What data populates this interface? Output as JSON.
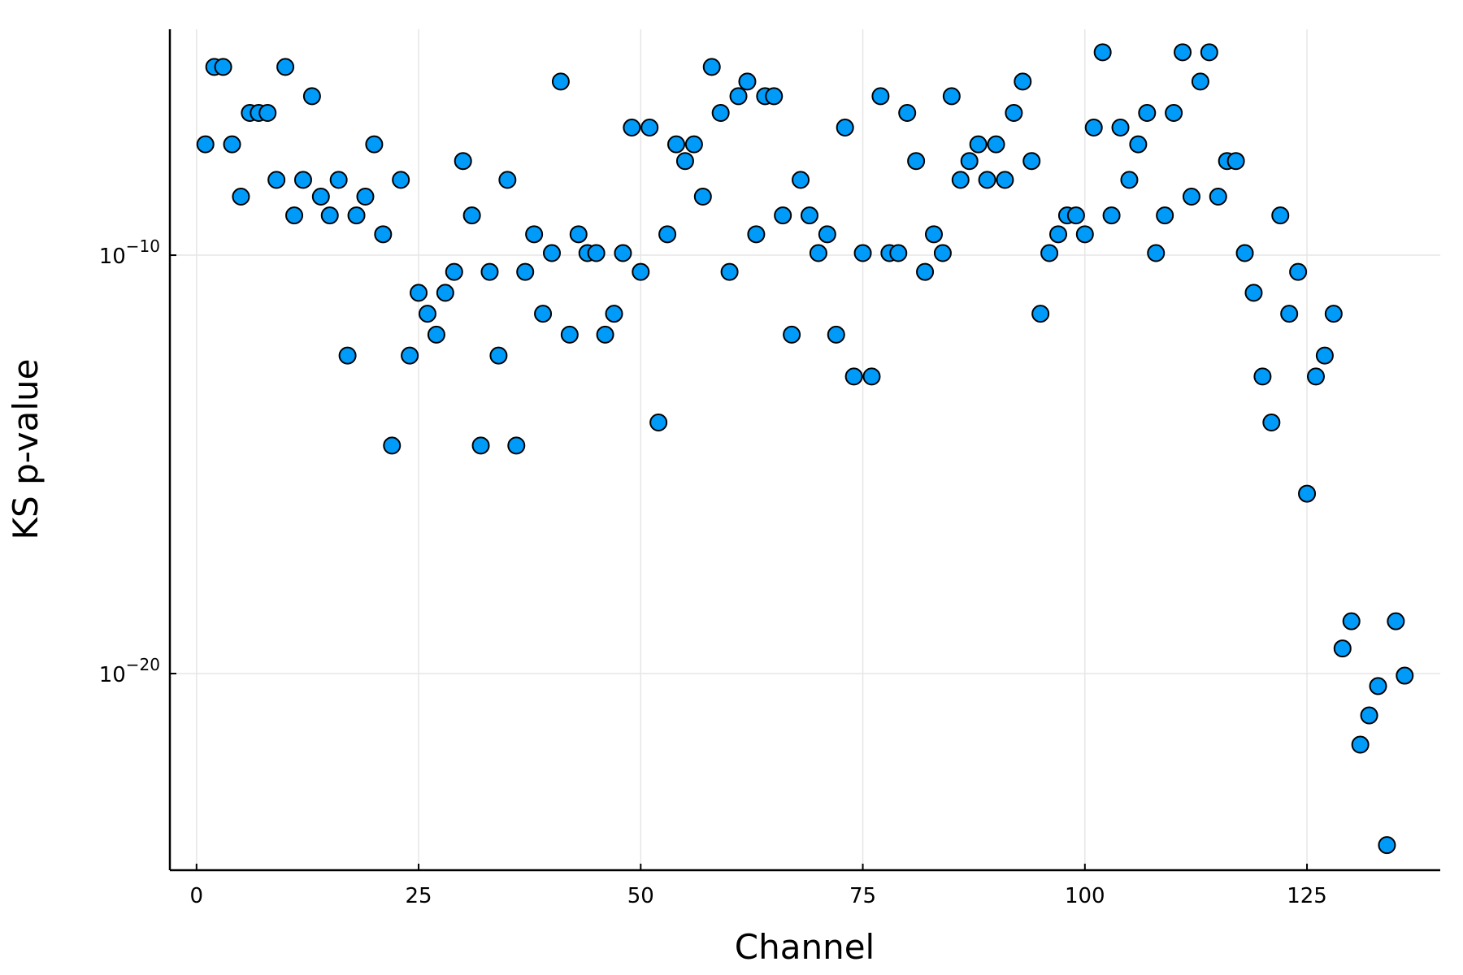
{
  "chart_data": {
    "type": "scatter",
    "xlabel": "Channel",
    "ylabel": "KS p-value",
    "x_ticks": [
      0,
      25,
      50,
      75,
      100,
      125
    ],
    "y_ticks": [
      {
        "exponent": -10,
        "base": "10",
        "exp_label": "−10"
      },
      {
        "exponent": -20,
        "base": "10",
        "exp_label": "−20"
      }
    ],
    "xlim": [
      -3,
      140
    ],
    "ylim_log10": [
      -24.7,
      -4.6
    ],
    "y_scale": "log10",
    "grid": true,
    "legend": "none",
    "marker_color": "#009af9",
    "x": [
      1,
      2,
      3,
      4,
      5,
      6,
      7,
      8,
      9,
      10,
      11,
      12,
      13,
      14,
      15,
      16,
      17,
      18,
      19,
      20,
      21,
      22,
      23,
      24,
      25,
      26,
      27,
      28,
      29,
      30,
      31,
      32,
      33,
      34,
      35,
      36,
      37,
      38,
      39,
      40,
      41,
      42,
      43,
      44,
      45,
      46,
      47,
      48,
      49,
      50,
      51,
      52,
      53,
      54,
      55,
      56,
      57,
      58,
      59,
      60,
      61,
      62,
      63,
      64,
      65,
      66,
      67,
      68,
      69,
      70,
      71,
      72,
      73,
      74,
      75,
      76,
      77,
      78,
      79,
      80,
      81,
      82,
      83,
      84,
      85,
      86,
      87,
      88,
      89,
      90,
      91,
      92,
      93,
      94,
      95,
      96,
      97,
      98,
      99,
      100,
      101,
      102,
      103,
      104,
      105,
      106,
      107,
      108,
      109,
      110,
      111,
      112,
      113,
      114,
      115,
      116,
      117,
      118,
      119,
      120,
      121,
      122,
      123,
      124,
      125,
      126,
      127,
      128,
      129,
      130,
      131,
      132,
      133,
      134,
      135,
      136
    ],
    "log10_y": [
      -7.35,
      -5.5,
      -5.5,
      -7.35,
      -8.6,
      -6.6,
      -6.6,
      -6.6,
      -8.2,
      -5.5,
      -9.05,
      -8.2,
      -6.2,
      -8.6,
      -9.05,
      -8.2,
      -12.4,
      -9.05,
      -8.6,
      -7.35,
      -9.5,
      -14.55,
      -8.2,
      -12.4,
      -10.9,
      -11.4,
      -11.9,
      -10.9,
      -10.4,
      -7.75,
      -9.05,
      -14.55,
      -10.4,
      -12.4,
      -8.2,
      -14.55,
      -10.4,
      -9.5,
      -11.4,
      -9.95,
      -5.85,
      -11.9,
      -9.5,
      -9.95,
      -9.95,
      -11.9,
      -11.4,
      -9.95,
      -6.95,
      -10.4,
      -6.95,
      -14.0,
      -9.5,
      -7.35,
      -7.75,
      -7.35,
      -8.6,
      -5.5,
      -6.6,
      -10.4,
      -6.2,
      -5.85,
      -9.5,
      -6.2,
      -6.2,
      -9.05,
      -11.9,
      -8.2,
      -9.05,
      -9.95,
      -9.5,
      -11.9,
      -6.95,
      -12.9,
      -9.95,
      -12.9,
      -6.2,
      -9.95,
      -9.95,
      -6.6,
      -7.75,
      -10.4,
      -9.5,
      -9.95,
      -6.2,
      -8.2,
      -7.75,
      -7.35,
      -8.2,
      -7.35,
      -8.2,
      -6.6,
      -5.85,
      -7.75,
      -11.4,
      -9.95,
      -9.5,
      -9.05,
      -9.05,
      -9.5,
      -6.95,
      -5.15,
      -9.05,
      -6.95,
      -8.2,
      -7.35,
      -6.6,
      -9.95,
      -9.05,
      -6.6,
      -5.15,
      -8.6,
      -5.85,
      -5.15,
      -8.6,
      -7.75,
      -7.75,
      -9.95,
      -10.9,
      -12.9,
      -14.0,
      -9.05,
      -11.4,
      -10.4,
      -15.7,
      -12.9,
      -12.4,
      -11.4,
      -19.4,
      -18.75,
      -21.7,
      -21.0,
      -20.3,
      -24.1,
      -18.75,
      -20.05
    ]
  }
}
